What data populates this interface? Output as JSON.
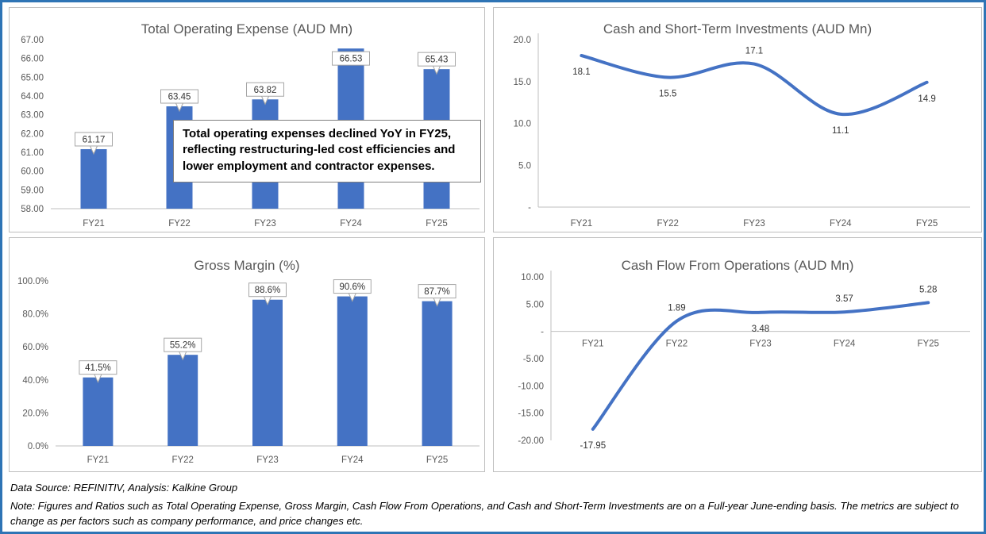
{
  "colors": {
    "bar": "#4472C4",
    "line": "#4472C4",
    "title": "#595959",
    "axis_label": "#595959",
    "axis_line": "#BFBFBF",
    "label_box_border": "#A6A6A6",
    "data_label": "#333333",
    "outer_border": "#2E74B5",
    "panel_border": "#BFBFBF"
  },
  "footer": {
    "source_line": "Data Source: REFINITIV, Analysis: Kalkine Group",
    "note_line": "Note: Figures and Ratios such as Total Operating Expense, Gross Margin, Cash Flow From Operations, and Cash and Short-Term Investments are on a Full-year June-ending basis. The metrics are subject to change as per factors such as company performance, and price changes etc."
  },
  "chart_data": [
    {
      "type": "bar",
      "title": "Total Operating Expense (AUD Mn)",
      "categories": [
        "FY21",
        "FY22",
        "FY23",
        "FY24",
        "FY25"
      ],
      "values": [
        61.17,
        63.45,
        63.82,
        66.53,
        65.43
      ],
      "data_labels": [
        "61.17",
        "63.45",
        "63.82",
        "66.53",
        "65.43"
      ],
      "ymin": 58,
      "ymax": 67,
      "ytick_values": [
        58,
        59,
        60,
        61,
        62,
        63,
        64,
        65,
        66,
        67
      ],
      "ytick_labels": [
        "58.00",
        "59.00",
        "60.00",
        "61.00",
        "62.00",
        "63.00",
        "64.00",
        "65.00",
        "66.00",
        "67.00"
      ],
      "grid": "off",
      "legend": "none",
      "annotation": "Total operating expenses declined YoY in FY25, reflecting restructuring-led cost efficiencies and lower employment and contractor expenses."
    },
    {
      "type": "line",
      "title": "Cash and Short-Term Investments (AUD Mn)",
      "categories": [
        "FY21",
        "FY22",
        "FY23",
        "FY24",
        "FY25"
      ],
      "values": [
        18.1,
        15.5,
        17.1,
        11.1,
        14.9
      ],
      "data_labels": [
        "18.1",
        "15.5",
        "17.1",
        "11.1",
        "14.9"
      ],
      "label_side": [
        "below",
        "below",
        "above",
        "below",
        "below"
      ],
      "ymin": 0,
      "ymax": 20,
      "ytick_values": [
        0,
        5,
        10,
        15,
        20
      ],
      "ytick_labels": [
        "-",
        "5.0",
        "10.0",
        "15.0",
        "20.0"
      ],
      "grid": "off",
      "legend": "none"
    },
    {
      "type": "bar",
      "title": "Gross Margin (%)",
      "categories": [
        "FY21",
        "FY22",
        "FY23",
        "FY24",
        "FY25"
      ],
      "values": [
        41.5,
        55.2,
        88.6,
        90.6,
        87.7
      ],
      "data_labels": [
        "41.5%",
        "55.2%",
        "88.6%",
        "90.6%",
        "87.7%"
      ],
      "ymin": 0,
      "ymax": 100,
      "ytick_values": [
        0,
        20,
        40,
        60,
        80,
        100
      ],
      "ytick_labels": [
        "0.0%",
        "20.0%",
        "40.0%",
        "60.0%",
        "80.0%",
        "100.0%"
      ],
      "grid": "off",
      "legend": "none"
    },
    {
      "type": "line",
      "title": "Cash Flow From Operations (AUD Mn)",
      "categories": [
        "FY21",
        "FY22",
        "FY23",
        "FY24",
        "FY25"
      ],
      "values": [
        -17.95,
        1.89,
        3.48,
        3.57,
        5.28
      ],
      "data_labels": [
        "-17.95",
        "1.89",
        "3.48",
        "3.57",
        "5.28"
      ],
      "label_side": [
        "below",
        "above",
        "below",
        "above",
        "above"
      ],
      "ymin": -20,
      "ymax": 10,
      "ytick_values": [
        -20,
        -15,
        -10,
        -5,
        0,
        5,
        10
      ],
      "ytick_labels": [
        "-20.00",
        "-15.00",
        "-10.00",
        "-5.00",
        "-",
        "5.00",
        "10.00"
      ],
      "x_labels_at_zero": true,
      "grid": "off",
      "legend": "none"
    }
  ]
}
